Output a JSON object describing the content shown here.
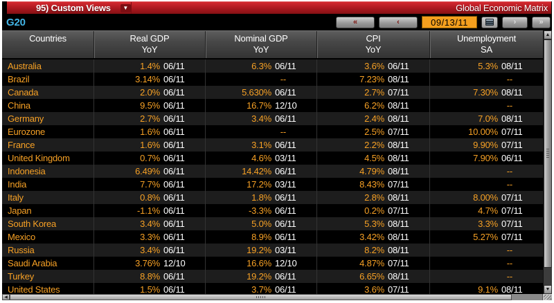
{
  "colors": {
    "accent_orange": "#f7a125",
    "date_text_white": "#ffffff",
    "title_bar_red": "#b21b22",
    "g20_cyan": "#43b5e6",
    "date_field_orange": "#f49f1e"
  },
  "title_bar": {
    "menu_label": "95) Custom Views",
    "dropdown_icon": "chevron-down-icon",
    "title": "Global Economic Matrix"
  },
  "toolbar": {
    "view_label": "G20",
    "prev_fast_label": "«",
    "prev_label": "‹",
    "date_value": "09/13/11",
    "calendar_icon": "calendar-icon",
    "next_label": "›",
    "next_fast_label": "»"
  },
  "table": {
    "columns": [
      {
        "label": "Countries",
        "sub": ""
      },
      {
        "label": "Real GDP",
        "sub": "YoY"
      },
      {
        "label": "Nominal GDP",
        "sub": "YoY"
      },
      {
        "label": "CPI",
        "sub": "YoY"
      },
      {
        "label": "Unemployment",
        "sub": "SA"
      }
    ],
    "rows": [
      {
        "country": "Australia",
        "real_gdp": "1.4%",
        "real_gdp_date": "06/11",
        "nominal_gdp": "6.3%",
        "nominal_gdp_date": "06/11",
        "cpi": "3.6%",
        "cpi_date": "06/11",
        "unemployment": "5.3%",
        "unemployment_date": "08/11"
      },
      {
        "country": "Brazil",
        "real_gdp": "3.14%",
        "real_gdp_date": "06/11",
        "nominal_gdp": "--",
        "nominal_gdp_date": "",
        "cpi": "7.23%",
        "cpi_date": "08/11",
        "unemployment": "--",
        "unemployment_date": ""
      },
      {
        "country": "Canada",
        "real_gdp": "2.0%",
        "real_gdp_date": "06/11",
        "nominal_gdp": "5.630%",
        "nominal_gdp_date": "06/11",
        "cpi": "2.7%",
        "cpi_date": "07/11",
        "unemployment": "7.30%",
        "unemployment_date": "08/11"
      },
      {
        "country": "China",
        "real_gdp": "9.5%",
        "real_gdp_date": "06/11",
        "nominal_gdp": "16.7%",
        "nominal_gdp_date": "12/10",
        "cpi": "6.2%",
        "cpi_date": "08/11",
        "unemployment": "--",
        "unemployment_date": ""
      },
      {
        "country": "Germany",
        "real_gdp": "2.7%",
        "real_gdp_date": "06/11",
        "nominal_gdp": "3.4%",
        "nominal_gdp_date": "06/11",
        "cpi": "2.4%",
        "cpi_date": "08/11",
        "unemployment": "7.0%",
        "unemployment_date": "08/11"
      },
      {
        "country": "Eurozone",
        "real_gdp": "1.6%",
        "real_gdp_date": "06/11",
        "nominal_gdp": "--",
        "nominal_gdp_date": "",
        "cpi": "2.5%",
        "cpi_date": "07/11",
        "unemployment": "10.00%",
        "unemployment_date": "07/11"
      },
      {
        "country": "France",
        "real_gdp": "1.6%",
        "real_gdp_date": "06/11",
        "nominal_gdp": "3.1%",
        "nominal_gdp_date": "06/11",
        "cpi": "2.2%",
        "cpi_date": "08/11",
        "unemployment": "9.90%",
        "unemployment_date": "07/11"
      },
      {
        "country": "United Kingdom",
        "real_gdp": "0.7%",
        "real_gdp_date": "06/11",
        "nominal_gdp": "4.6%",
        "nominal_gdp_date": "03/11",
        "cpi": "4.5%",
        "cpi_date": "08/11",
        "unemployment": "7.90%",
        "unemployment_date": "06/11"
      },
      {
        "country": "Indonesia",
        "real_gdp": "6.49%",
        "real_gdp_date": "06/11",
        "nominal_gdp": "14.42%",
        "nominal_gdp_date": "06/11",
        "cpi": "4.79%",
        "cpi_date": "08/11",
        "unemployment": "--",
        "unemployment_date": ""
      },
      {
        "country": "India",
        "real_gdp": "7.7%",
        "real_gdp_date": "06/11",
        "nominal_gdp": "17.2%",
        "nominal_gdp_date": "03/11",
        "cpi": "8.43%",
        "cpi_date": "07/11",
        "unemployment": "--",
        "unemployment_date": ""
      },
      {
        "country": "Italy",
        "real_gdp": "0.8%",
        "real_gdp_date": "06/11",
        "nominal_gdp": "1.8%",
        "nominal_gdp_date": "06/11",
        "cpi": "2.8%",
        "cpi_date": "08/11",
        "unemployment": "8.00%",
        "unemployment_date": "07/11"
      },
      {
        "country": "Japan",
        "real_gdp": "-1.1%",
        "real_gdp_date": "06/11",
        "nominal_gdp": "-3.3%",
        "nominal_gdp_date": "06/11",
        "cpi": "0.2%",
        "cpi_date": "07/11",
        "unemployment": "4.7%",
        "unemployment_date": "07/11"
      },
      {
        "country": "South Korea",
        "real_gdp": "3.4%",
        "real_gdp_date": "06/11",
        "nominal_gdp": "5.0%",
        "nominal_gdp_date": "06/11",
        "cpi": "5.3%",
        "cpi_date": "08/11",
        "unemployment": "3.3%",
        "unemployment_date": "07/11"
      },
      {
        "country": "Mexico",
        "real_gdp": "3.3%",
        "real_gdp_date": "06/11",
        "nominal_gdp": "8.9%",
        "nominal_gdp_date": "06/11",
        "cpi": "3.42%",
        "cpi_date": "08/11",
        "unemployment": "5.27%",
        "unemployment_date": "07/11"
      },
      {
        "country": "Russia",
        "real_gdp": "3.4%",
        "real_gdp_date": "06/11",
        "nominal_gdp": "19.2%",
        "nominal_gdp_date": "03/11",
        "cpi": "8.2%",
        "cpi_date": "08/11",
        "unemployment": "--",
        "unemployment_date": ""
      },
      {
        "country": "Saudi Arabia",
        "real_gdp": "3.76%",
        "real_gdp_date": "12/10",
        "nominal_gdp": "16.6%",
        "nominal_gdp_date": "12/10",
        "cpi": "4.87%",
        "cpi_date": "07/11",
        "unemployment": "--",
        "unemployment_date": ""
      },
      {
        "country": "Turkey",
        "real_gdp": "8.8%",
        "real_gdp_date": "06/11",
        "nominal_gdp": "19.2%",
        "nominal_gdp_date": "06/11",
        "cpi": "6.65%",
        "cpi_date": "08/11",
        "unemployment": "--",
        "unemployment_date": ""
      },
      {
        "country": "United States",
        "real_gdp": "1.5%",
        "real_gdp_date": "06/11",
        "nominal_gdp": "3.7%",
        "nominal_gdp_date": "06/11",
        "cpi": "3.6%",
        "cpi_date": "07/11",
        "unemployment": "9.1%",
        "unemployment_date": "08/11"
      }
    ]
  }
}
